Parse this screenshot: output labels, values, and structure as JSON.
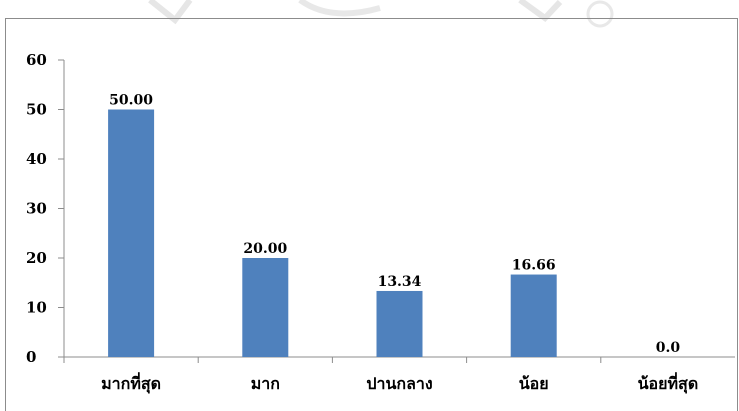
{
  "chart_data": {
    "type": "bar",
    "title": "",
    "xlabel": "",
    "ylabel": "",
    "categories": [
      "มากที่สุด",
      "มาก",
      "ปานกลาง",
      "น้อย",
      "น้อยที่สุด"
    ],
    "values": [
      50.0,
      20.0,
      13.34,
      16.66,
      0.0
    ],
    "data_labels": [
      "50.00",
      "20.00",
      "13.34",
      "16.66",
      "0.0"
    ],
    "ylim": [
      0,
      60
    ],
    "yticks": [
      0,
      10,
      20,
      30,
      40,
      50,
      60
    ],
    "grid": false,
    "legend": "none",
    "bar_color": "#4f81bd",
    "axis_color": "#8c8c8c"
  }
}
